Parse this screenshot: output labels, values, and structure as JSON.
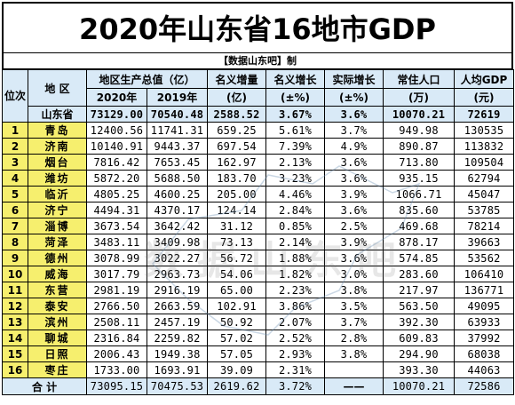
{
  "title": "2020年山东省16地市GDP",
  "source": "【数据山东吧】制",
  "headers": {
    "rank": "位次",
    "region": "地 区",
    "gdp_total": "地区生产总值（亿）",
    "gdp_2020": "2020年",
    "gdp_2019": "2019年",
    "nominal_increase": "名义增量",
    "nominal_increase_unit": "(亿)",
    "nominal_growth": "名义增长",
    "nominal_growth_unit": "(±%)",
    "real_growth": "实际增长",
    "real_growth_unit": "(±%)",
    "population": "常住人口",
    "population_unit": "(万)",
    "per_capita": "人均GDP",
    "per_capita_unit": "(元)"
  },
  "province": {
    "name": "山东省",
    "gdp_2020": "73129.00",
    "gdp_2019": "70540.48",
    "increase": "2588.52",
    "nominal_growth": "3.67%",
    "real_growth": "3.6%",
    "population": "10070.21",
    "per_capita": "72619"
  },
  "rows": [
    {
      "rank": "1",
      "city": "青岛",
      "gdp_2020": "12400.56",
      "gdp_2019": "11741.31",
      "increase": "659.25",
      "nominal": "5.61%",
      "real": "3.7%",
      "pop": "949.98",
      "per_capita": "130535"
    },
    {
      "rank": "2",
      "city": "济南",
      "gdp_2020": "10140.91",
      "gdp_2019": "9443.37",
      "increase": "697.54",
      "nominal": "7.39%",
      "real": "4.9%",
      "pop": "890.87",
      "per_capita": "113832"
    },
    {
      "rank": "3",
      "city": "烟台",
      "gdp_2020": "7816.42",
      "gdp_2019": "7653.45",
      "increase": "162.97",
      "nominal": "2.13%",
      "real": "3.6%",
      "pop": "713.80",
      "per_capita": "109504"
    },
    {
      "rank": "4",
      "city": "潍坊",
      "gdp_2020": "5872.20",
      "gdp_2019": "5688.50",
      "increase": "183.70",
      "nominal": "3.23%",
      "real": "3.6%",
      "pop": "935.15",
      "per_capita": "62794"
    },
    {
      "rank": "5",
      "city": "临沂",
      "gdp_2020": "4805.25",
      "gdp_2019": "4600.25",
      "increase": "205.00",
      "nominal": "4.46%",
      "real": "3.9%",
      "pop": "1066.71",
      "per_capita": "45047"
    },
    {
      "rank": "6",
      "city": "济宁",
      "gdp_2020": "4494.31",
      "gdp_2019": "4370.17",
      "increase": "124.14",
      "nominal": "2.84%",
      "real": "3.6%",
      "pop": "835.60",
      "per_capita": "53785"
    },
    {
      "rank": "7",
      "city": "淄博",
      "gdp_2020": "3673.54",
      "gdp_2019": "3642.42",
      "increase": "31.12",
      "nominal": "0.85%",
      "real": "2.5%",
      "pop": "469.68",
      "per_capita": "78214"
    },
    {
      "rank": "8",
      "city": "菏泽",
      "gdp_2020": "3483.11",
      "gdp_2019": "3409.98",
      "increase": "73.13",
      "nominal": "2.14%",
      "real": "3.9%",
      "pop": "878.17",
      "per_capita": "39663"
    },
    {
      "rank": "9",
      "city": "德州",
      "gdp_2020": "3078.99",
      "gdp_2019": "3022.27",
      "increase": "56.72",
      "nominal": "1.88%",
      "real": "3.6%",
      "pop": "574.85",
      "per_capita": "53562"
    },
    {
      "rank": "10",
      "city": "威海",
      "gdp_2020": "3017.79",
      "gdp_2019": "2963.73",
      "increase": "54.06",
      "nominal": "1.82%",
      "real": "3.0%",
      "pop": "283.60",
      "per_capita": "106410"
    },
    {
      "rank": "11",
      "city": "东营",
      "gdp_2020": "2981.19",
      "gdp_2019": "2916.19",
      "increase": "65.00",
      "nominal": "2.23%",
      "real": "3.8%",
      "pop": "217.97",
      "per_capita": "136771"
    },
    {
      "rank": "12",
      "city": "泰安",
      "gdp_2020": "2766.50",
      "gdp_2019": "2663.59",
      "increase": "102.91",
      "nominal": "3.86%",
      "real": "3.5%",
      "pop": "563.50",
      "per_capita": "49095"
    },
    {
      "rank": "13",
      "city": "滨州",
      "gdp_2020": "2508.11",
      "gdp_2019": "2457.19",
      "increase": "50.92",
      "nominal": "2.07%",
      "real": "3.7%",
      "pop": "392.30",
      "per_capita": "63933"
    },
    {
      "rank": "14",
      "city": "聊城",
      "gdp_2020": "2316.84",
      "gdp_2019": "2259.82",
      "increase": "57.02",
      "nominal": "2.52%",
      "real": "2.8%",
      "pop": "609.83",
      "per_capita": "37992"
    },
    {
      "rank": "15",
      "city": "日照",
      "gdp_2020": "2006.43",
      "gdp_2019": "1949.38",
      "increase": "57.05",
      "nominal": "2.93%",
      "real": "3.8%",
      "pop": "294.90",
      "per_capita": "68038"
    },
    {
      "rank": "16",
      "city": "枣庄",
      "gdp_2020": "1733.00",
      "gdp_2019": "1693.91",
      "increase": "39.09",
      "nominal": "2.31%",
      "real": "",
      "pop": "393.30",
      "per_capita": "44063"
    }
  ],
  "total": {
    "label": "合 计",
    "gdp_2020": "73095.15",
    "gdp_2019": "70475.53",
    "increase": "2619.62",
    "nominal_growth": "3.72%",
    "real_growth": "——",
    "population": "10070.21",
    "per_capita": "72586"
  },
  "watermark": "数据山东吧"
}
